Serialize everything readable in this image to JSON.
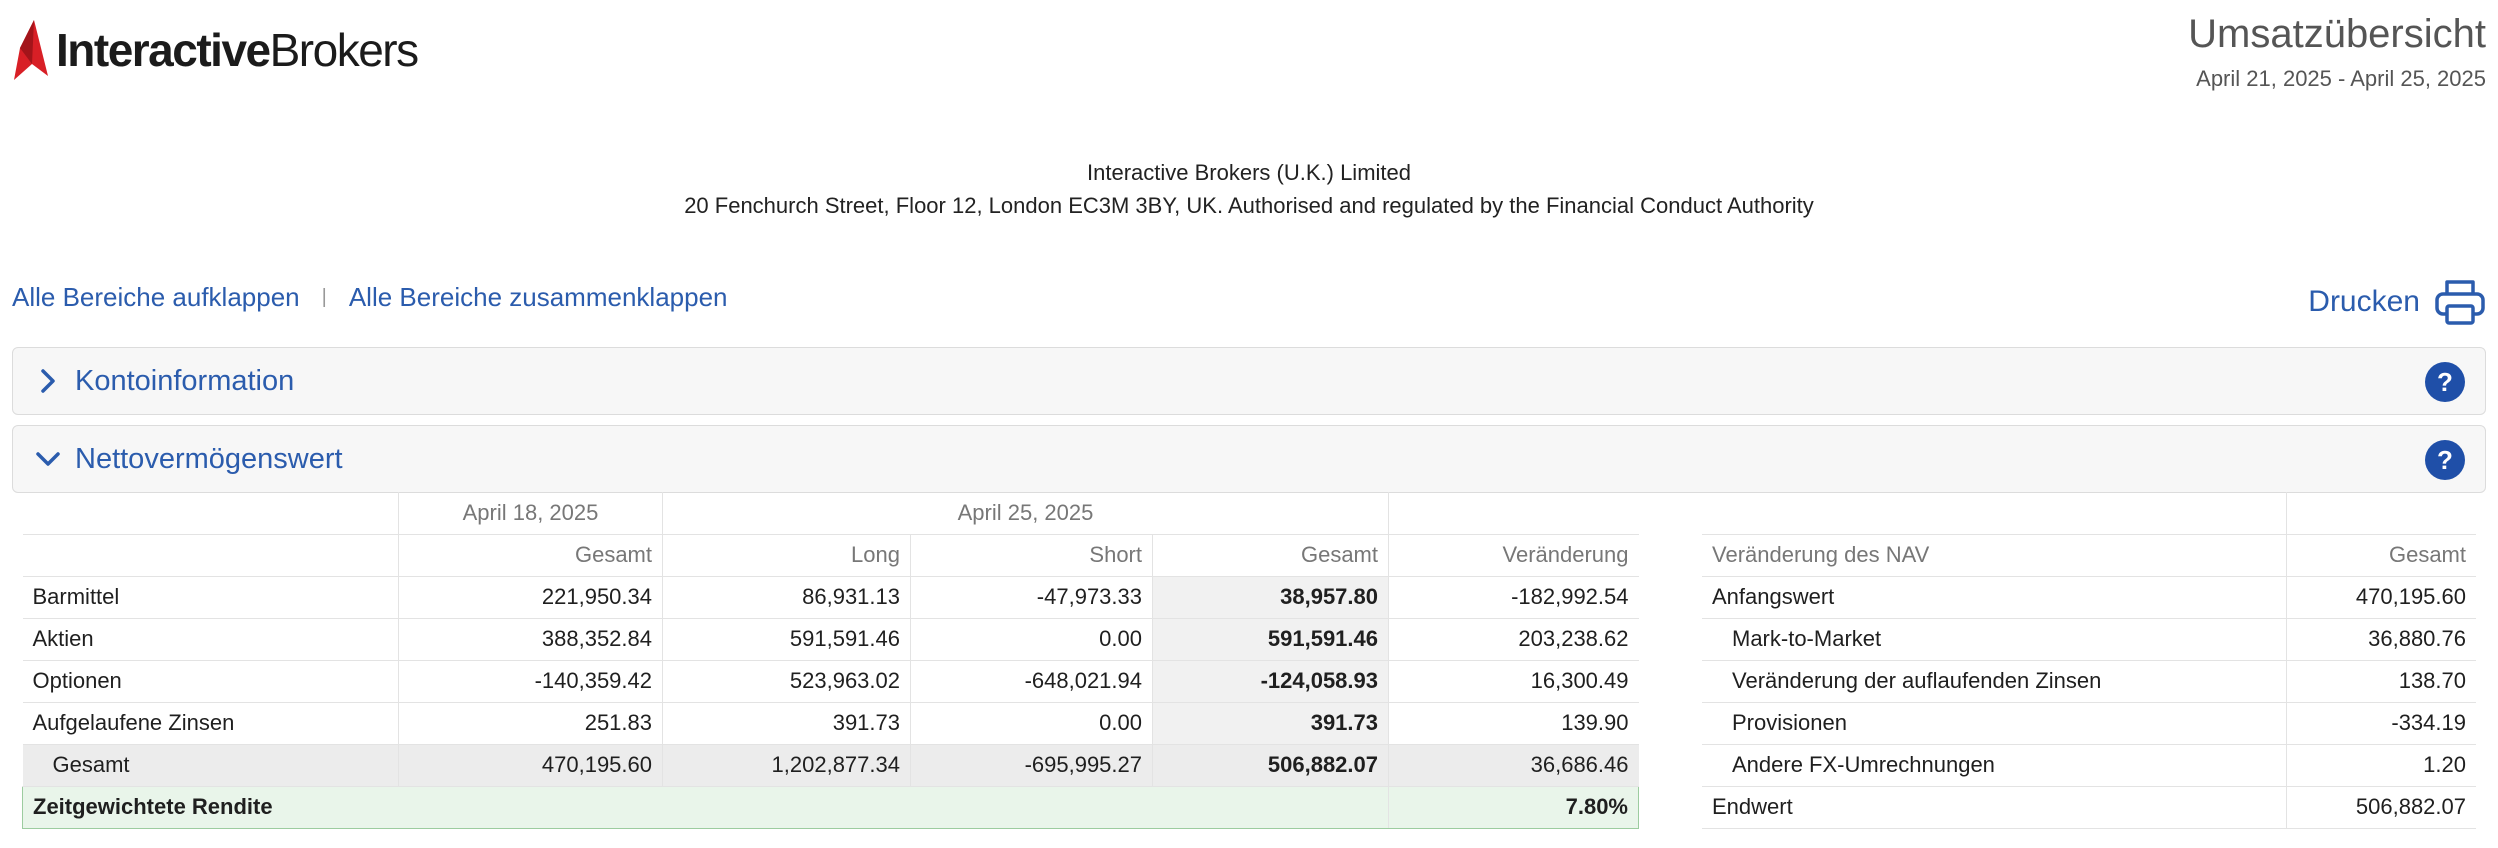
{
  "brand": {
    "name_bold": "Interactive",
    "name_regular": "Brokers",
    "logo_color": "#d81f26"
  },
  "report": {
    "title": "Umsatzübersicht",
    "date_range": "April 21, 2025 - April 25, 2025"
  },
  "firm": {
    "name": "Interactive Brokers (U.K.) Limited",
    "address": "20 Fenchurch Street, Floor 12, London EC3M 3BY, UK. Authorised and regulated by the Financial Conduct Authority"
  },
  "toolbar": {
    "expand_all": "Alle Bereiche aufklappen",
    "separator": "|",
    "collapse_all": "Alle Bereiche zusammenklappen",
    "print": "Drucken"
  },
  "sections": {
    "account": {
      "title": "Kontoinformation",
      "help": "?"
    },
    "nav": {
      "title": "Nettovermögenswert",
      "help": "?"
    }
  },
  "nav_table": {
    "date_prior": "April 18, 2025",
    "date_current": "April 25, 2025",
    "columns": [
      "Gesamt",
      "Long",
      "Short",
      "Gesamt",
      "Veränderung"
    ],
    "rows": [
      {
        "label": "Barmittel",
        "prior_total": "221,950.34",
        "long": "86,931.13",
        "short": "-47,973.33",
        "total": "38,957.80",
        "change": "-182,992.54"
      },
      {
        "label": "Aktien",
        "prior_total": "388,352.84",
        "long": "591,591.46",
        "short": "0.00",
        "total": "591,591.46",
        "change": "203,238.62"
      },
      {
        "label": "Optionen",
        "prior_total": "-140,359.42",
        "long": "523,963.02",
        "short": "-648,021.94",
        "total": "-124,058.93",
        "change": "16,300.49"
      },
      {
        "label": "Aufgelaufene Zinsen",
        "prior_total": "251.83",
        "long": "391.73",
        "short": "0.00",
        "total": "391.73",
        "change": "139.90"
      }
    ],
    "total": {
      "label": "Gesamt",
      "prior_total": "470,195.60",
      "long": "1,202,877.34",
      "short": "-695,995.27",
      "total": "506,882.07",
      "change": "36,686.46"
    },
    "twr": {
      "label": "Zeitgewichtete Rendite",
      "value": "7.80%"
    }
  },
  "nav_change": {
    "header_label": "Veränderung des NAV",
    "header_value": "Gesamt",
    "rows": [
      {
        "label": "Anfangswert",
        "value": "470,195.60",
        "indent": false
      },
      {
        "label": "Mark-to-Market",
        "value": "36,880.76",
        "indent": true
      },
      {
        "label": "Veränderung der auflaufenden Zinsen",
        "value": "138.70",
        "indent": true
      },
      {
        "label": "Provisionen",
        "value": "-334.19",
        "indent": true
      },
      {
        "label": "Andere FX-Umrechnungen",
        "value": "1.20",
        "indent": true
      },
      {
        "label": "Endwert",
        "value": "506,882.07",
        "indent": false
      }
    ]
  },
  "colors": {
    "link": "#2b5cad",
    "help_badge": "#1f4fa8",
    "twr_bg": "#e9f5ea",
    "twr_border": "#9ccc9f"
  }
}
